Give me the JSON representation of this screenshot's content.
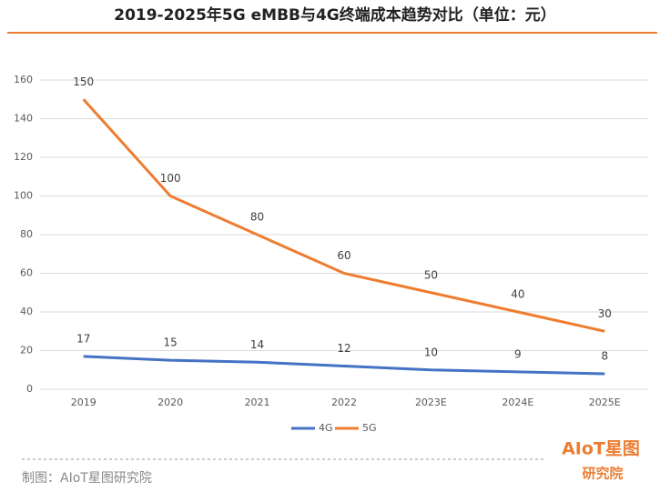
{
  "chart_data": {
    "type": "line",
    "title": "2019-2025年5G eMBB与4G终端成本趋势对比（单位：元）",
    "categories": [
      "2019",
      "2020",
      "2021",
      "2022",
      "2023E",
      "2024E",
      "2025E"
    ],
    "series": [
      {
        "name": "4G",
        "color": "#4472c4",
        "values": [
          17,
          15,
          14,
          12,
          10,
          9,
          8
        ]
      },
      {
        "name": "5G",
        "color": "#ed7d31",
        "values": [
          150,
          100,
          80,
          60,
          50,
          40,
          30
        ]
      }
    ],
    "ylim": [
      0,
      160
    ],
    "yticks": [
      0,
      20,
      40,
      60,
      80,
      100,
      120,
      140,
      160
    ],
    "grid": true,
    "legend": "bottom",
    "source": "制图：AIoT星图研究院",
    "logo": [
      "AIoT星图",
      "研究院"
    ]
  }
}
